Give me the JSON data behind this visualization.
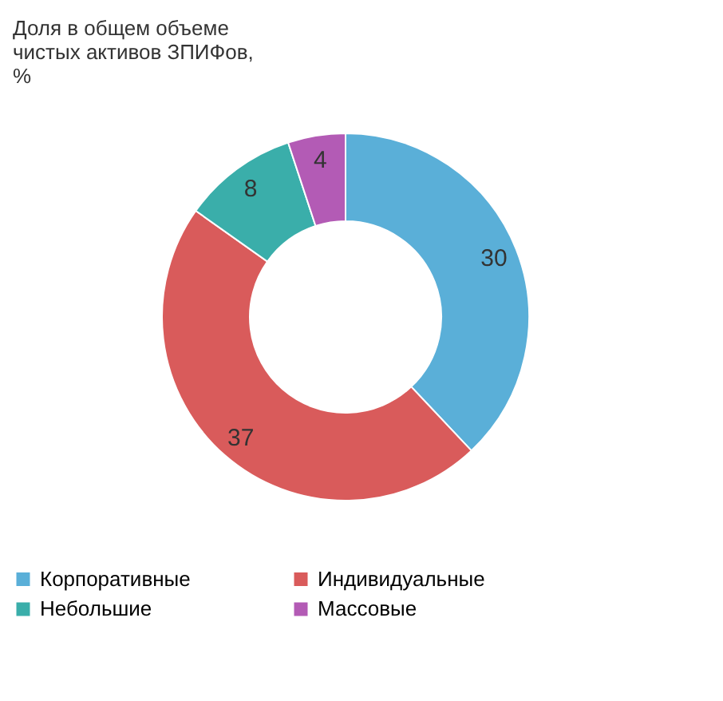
{
  "chart_data": {
    "type": "donut",
    "title": "Доля в общем объеме чистых активов ЗПИФов, %",
    "categories": [
      "Корпоративные",
      "Индивидуальные",
      "Небольшие",
      "Массовые"
    ],
    "values": [
      30,
      37,
      8,
      4
    ],
    "colors": [
      "#5aafd8",
      "#d95b5b",
      "#3aaeaa",
      "#b35bb5"
    ],
    "data_labels": true,
    "legend": "bottom"
  }
}
